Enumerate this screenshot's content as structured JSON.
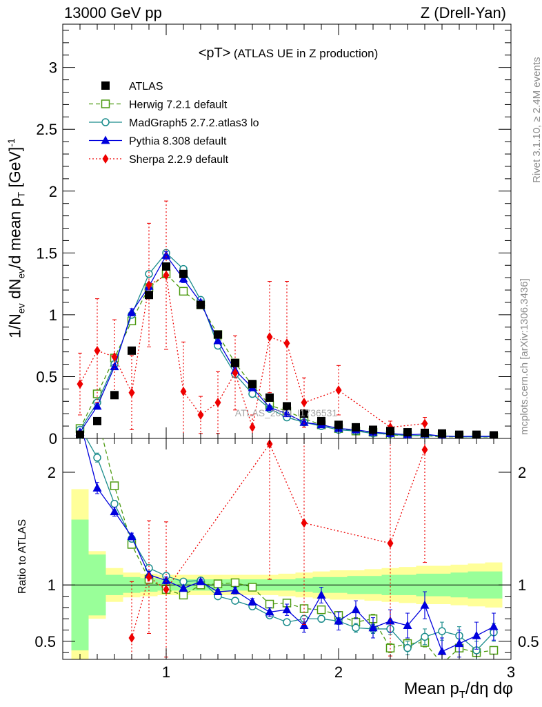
{
  "header": {
    "left": "13000 GeV pp",
    "right": "Z (Drell-Yan)"
  },
  "side_labels": {
    "rivet": "Rivet 3.1.10, ≥ 2.4M events",
    "mcplots": "mcplots.cern.ch [arXiv:1306.3436]"
  },
  "watermark": "ATLAS_2019_I1736531",
  "chart_data": {
    "type": "scatter",
    "title_main": "<pT>",
    "title_sub": "(ATLAS UE in Z production)",
    "xlabel": "Mean p_T/dη dφ",
    "xlim": [
      0.4,
      3.0
    ],
    "x_ticks": [
      "1",
      "2",
      "3"
    ],
    "top_panel": {
      "ylabel": "1/N_ev dN_ev/d mean p_T [GeV]^-1",
      "ylim": [
        0,
        3.35
      ],
      "y_ticks": [
        "0",
        "0.5",
        "1",
        "1.5",
        "2",
        "2.5",
        "3"
      ]
    },
    "ratio_panel": {
      "ylabel": "Ratio to ATLAS",
      "ylim": [
        0.34,
        2.3
      ],
      "y_ticks": [
        "0.5",
        "1",
        "2"
      ],
      "band_inner": [
        0.58,
        0.27,
        0.09,
        0.07,
        0.06,
        0.05,
        0.05,
        0.05,
        0.05,
        0.05,
        0.05,
        0.05,
        0.05,
        0.06,
        0.07,
        0.07,
        0.08,
        0.08,
        0.09,
        0.09,
        0.1,
        0.1,
        0.11,
        0.12,
        0.12
      ],
      "band_outer": [
        0.85,
        0.3,
        0.15,
        0.11,
        0.1,
        0.09,
        0.09,
        0.09,
        0.09,
        0.09,
        0.09,
        0.09,
        0.1,
        0.11,
        0.12,
        0.13,
        0.13,
        0.14,
        0.15,
        0.16,
        0.17,
        0.17,
        0.18,
        0.19,
        0.2
      ]
    },
    "x": [
      0.5,
      0.6,
      0.7,
      0.8,
      0.9,
      1.0,
      1.1,
      1.2,
      1.3,
      1.4,
      1.5,
      1.6,
      1.7,
      1.8,
      1.9,
      2.0,
      2.1,
      2.2,
      2.3,
      2.4,
      2.5,
      2.6,
      2.7,
      2.8,
      2.9
    ],
    "series": [
      {
        "name": "ATLAS",
        "color": "#000000",
        "marker": "square-filled",
        "values": [
          0.03,
          0.14,
          0.35,
          0.71,
          1.16,
          1.39,
          1.33,
          1.08,
          0.84,
          0.61,
          0.44,
          0.33,
          0.26,
          0.2,
          0.14,
          0.11,
          0.09,
          0.07,
          0.06,
          0.05,
          0.045,
          0.04,
          0.03,
          0.03,
          0.025
        ],
        "errors": [
          0,
          0,
          0,
          0,
          0,
          0,
          0,
          0,
          0,
          0,
          0,
          0,
          0,
          0,
          0,
          0,
          0,
          0,
          0,
          0,
          0,
          0,
          0,
          0,
          0
        ],
        "ratio": null,
        "ratio_err": null
      },
      {
        "name": "Herwig 7.2.1 default",
        "color": "#4c9a10",
        "marker": "square-open",
        "dash": "6,4",
        "values": [
          0.08,
          0.36,
          0.65,
          0.95,
          1.22,
          1.33,
          1.19,
          1.08,
          0.84,
          0.61,
          0.43,
          0.27,
          0.22,
          0.16,
          0.11,
          0.08,
          0.06,
          0.05,
          0.027,
          0.024,
          0.022,
          0.013,
          0.013,
          0.012,
          0.011
        ],
        "errors": [
          0.01,
          0.02,
          0.02,
          0.02,
          0.02,
          0.02,
          0.02,
          0.02,
          0.02,
          0.01,
          0.01,
          0.01,
          0.01,
          0.01,
          0.01,
          0.01,
          0.01,
          0.01,
          0.005,
          0.004,
          0.004,
          0.003,
          0.003,
          0.003,
          0.003
        ],
        "ratio": [
          2.6,
          2.5,
          1.88,
          1.36,
          1.05,
          0.96,
          0.91,
          1.0,
          1.01,
          1.02,
          0.98,
          0.83,
          0.84,
          0.79,
          0.78,
          0.73,
          0.67,
          0.7,
          0.44,
          0.48,
          0.49,
          0.3,
          0.44,
          0.4,
          0.42
        ],
        "ratio_err": [
          0.1,
          0.04,
          0.03,
          0.02,
          0.02,
          0.02,
          0.02,
          0.02,
          0.02,
          0.02,
          0.02,
          0.02,
          0.02,
          0.03,
          0.03,
          0.03,
          0.04,
          0.04,
          0.04,
          0.04,
          0.04,
          0.04,
          0.03,
          0.03,
          0.03
        ]
      },
      {
        "name": "MadGraph5 2.7.2.atlas3 lo",
        "color": "#1a8c8c",
        "marker": "circle-open",
        "dash": "",
        "values": [
          0.07,
          0.29,
          0.6,
          1.0,
          1.33,
          1.5,
          1.37,
          1.12,
          0.75,
          0.52,
          0.36,
          0.24,
          0.17,
          0.13,
          0.1,
          0.07,
          0.06,
          0.04,
          0.035,
          0.022,
          0.026,
          0.021,
          0.013,
          0.013,
          0.015
        ],
        "errors": [
          0.01,
          0.02,
          0.02,
          0.02,
          0.02,
          0.02,
          0.02,
          0.02,
          0.02,
          0.01,
          0.01,
          0.01,
          0.01,
          0.01,
          0.01,
          0.01,
          0.01,
          0.01,
          0.005,
          0.004,
          0.004,
          0.003,
          0.003,
          0.003,
          0.003
        ],
        "ratio": [
          2.4,
          2.13,
          1.72,
          1.41,
          1.15,
          1.08,
          1.03,
          1.04,
          0.9,
          0.86,
          0.81,
          0.73,
          0.67,
          0.7,
          0.7,
          0.68,
          0.62,
          0.61,
          0.61,
          0.44,
          0.54,
          0.59,
          0.55,
          0.42,
          0.58
        ],
        "ratio_err": [
          0.1,
          0.04,
          0.03,
          0.02,
          0.02,
          0.02,
          0.02,
          0.02,
          0.02,
          0.02,
          0.02,
          0.02,
          0.02,
          0.03,
          0.03,
          0.03,
          0.04,
          0.04,
          0.05,
          0.06,
          0.07,
          0.08,
          0.08,
          0.08,
          0.08
        ]
      },
      {
        "name": "Pythia 8.308 default",
        "color": "#0000dd",
        "marker": "triangle-filled",
        "dash": "",
        "values": [
          0.05,
          0.26,
          0.58,
          1.02,
          1.23,
          1.48,
          1.29,
          1.1,
          0.79,
          0.55,
          0.41,
          0.25,
          0.2,
          0.13,
          0.11,
          0.08,
          0.07,
          0.05,
          0.04,
          0.03,
          0.035,
          0.018,
          0.016,
          0.017,
          0.017
        ],
        "errors": [
          0.01,
          0.02,
          0.02,
          0.03,
          0.03,
          0.03,
          0.03,
          0.02,
          0.02,
          0.02,
          0.02,
          0.01,
          0.01,
          0.01,
          0.01,
          0.01,
          0.01,
          0.01,
          0.005,
          0.004,
          0.004,
          0.003,
          0.003,
          0.003,
          0.003
        ],
        "ratio": [
          2.45,
          1.86,
          1.65,
          1.43,
          1.09,
          1.04,
          0.97,
          1.03,
          0.94,
          0.95,
          0.85,
          0.76,
          0.78,
          0.64,
          0.91,
          0.68,
          0.78,
          0.62,
          0.68,
          0.64,
          0.82,
          0.41,
          0.48,
          0.55,
          0.63
        ],
        "ratio_err": [
          0.1,
          0.05,
          0.04,
          0.03,
          0.03,
          0.03,
          0.02,
          0.02,
          0.02,
          0.03,
          0.03,
          0.04,
          0.05,
          0.06,
          0.07,
          0.08,
          0.08,
          0.09,
          0.1,
          0.11,
          0.12,
          0.12,
          0.12,
          0.12,
          0.12
        ]
      },
      {
        "name": "Sherpa 2.2.9 default",
        "color": "#ee0000",
        "marker": "diamond-filled",
        "dash": "2,3",
        "values": [
          0.44,
          0.71,
          0.66,
          0.37,
          1.24,
          1.32,
          0.38,
          0.19,
          0.29,
          0.53,
          0.09,
          0.82,
          0.77,
          0.29,
          null,
          0.39,
          null,
          null,
          0.09,
          null,
          0.12,
          null,
          null,
          null,
          null
        ],
        "errors": [
          0.25,
          0.42,
          0.3,
          0.3,
          0.5,
          0.6,
          0.4,
          0.15,
          0.25,
          0.3,
          0.1,
          0.45,
          0.5,
          0.2,
          null,
          0.2,
          null,
          null,
          0.05,
          null,
          0.05,
          null,
          null,
          null,
          null
        ],
        "ratio": [
          null,
          null,
          null,
          0.53,
          1.07,
          0.96,
          null,
          null,
          null,
          null,
          null,
          2.25,
          null,
          1.55,
          null,
          null,
          null,
          null,
          1.37,
          null,
          2.2,
          null,
          null,
          null,
          null
        ],
        "ratio_err": [
          null,
          null,
          null,
          0.5,
          0.5,
          0.6,
          null,
          null,
          null,
          null,
          null,
          1.2,
          null,
          0.9,
          null,
          null,
          null,
          null,
          1.0,
          null,
          1.0,
          null,
          null,
          null,
          null
        ]
      }
    ]
  }
}
